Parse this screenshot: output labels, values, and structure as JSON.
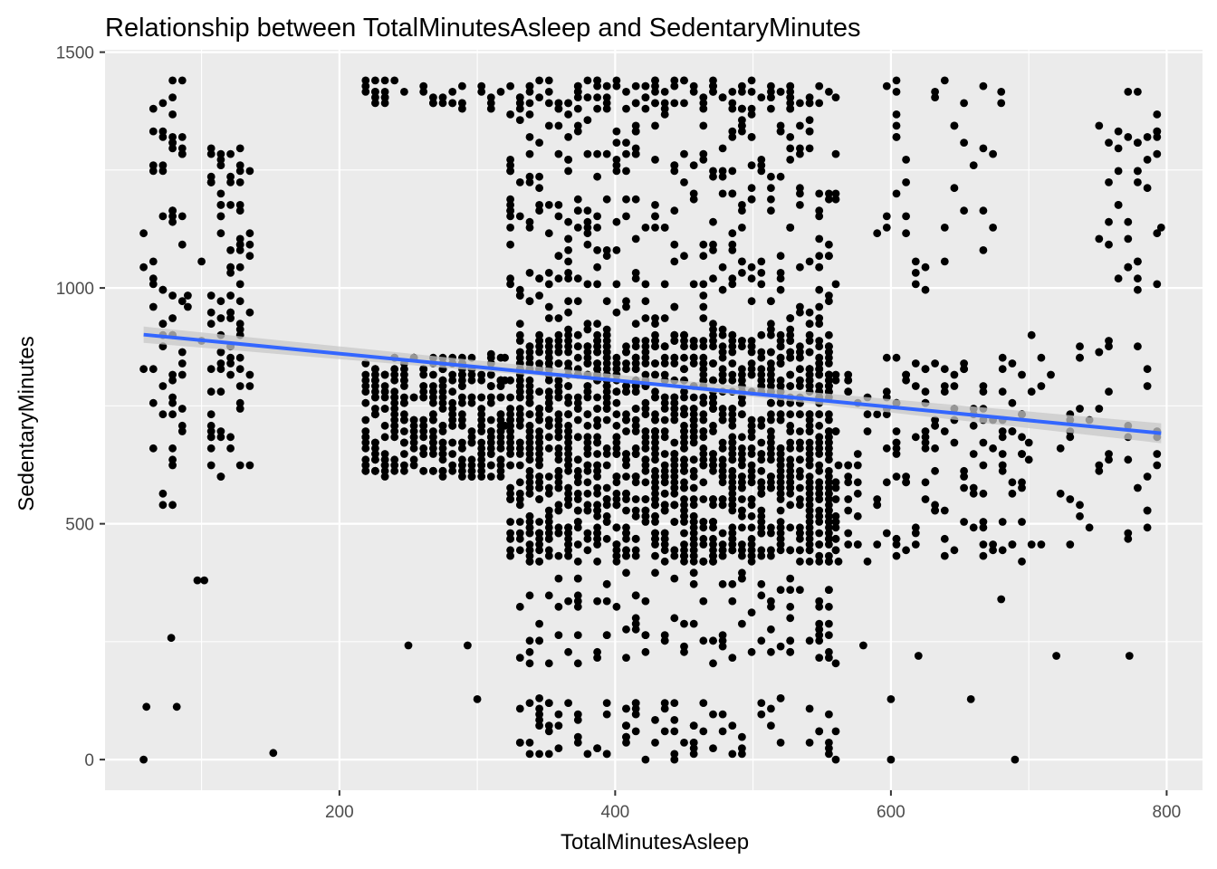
{
  "chart_data": {
    "type": "scatter",
    "title": "Relationship between TotalMinutesAsleep and SedentaryMinutes",
    "xlabel": "TotalMinutesAsleep",
    "ylabel": "SedentaryMinutes",
    "xlim": [
      30,
      826
    ],
    "ylim": [
      -65,
      1505
    ],
    "x_ticks": [
      200,
      400,
      600,
      800
    ],
    "x_tick_labels": [
      "200",
      "400",
      "600",
      "800"
    ],
    "y_ticks": [
      0,
      500,
      1000,
      1500
    ],
    "y_tick_labels": [
      "0",
      "500",
      "1000",
      "1500"
    ],
    "grid": true,
    "legend": "none",
    "colors": {
      "panel_background": "#ebebeb",
      "grid_line": "#ffffff",
      "point": "#000000",
      "trend_line": "#3366ff",
      "confidence_band": "#c8c8c8"
    },
    "trend_line": {
      "method": "lm",
      "se": true,
      "x": [
        58,
        796
      ],
      "y": [
        901,
        692
      ]
    },
    "point_clusters": [
      {
        "x": [
          58,
          90
        ],
        "y": [
          540,
          1440
        ],
        "n": 70
      },
      {
        "x": [
          100,
          135
        ],
        "y": [
          600,
          1300
        ],
        "n": 90
      },
      {
        "x": [
          215,
          320
        ],
        "y": [
          600,
          860
        ],
        "n": 320
      },
      {
        "x": [
          320,
          560
        ],
        "y": [
          420,
          900
        ],
        "n": 1400
      },
      {
        "x": [
          320,
          560
        ],
        "y": [
          900,
          1440
        ],
        "n": 320
      },
      {
        "x": [
          560,
          700
        ],
        "y": [
          420,
          860
        ],
        "n": 160
      },
      {
        "x": [
          590,
          680
        ],
        "y": [
          1000,
          1440
        ],
        "n": 40
      },
      {
        "x": [
          700,
          796
        ],
        "y": [
          440,
          900
        ],
        "n": 50
      },
      {
        "x": [
          750,
          796
        ],
        "y": [
          1000,
          1440
        ],
        "n": 40
      },
      {
        "x": [
          215,
          560
        ],
        "y": [
          1380,
          1440
        ],
        "n": 120
      },
      {
        "x": [
          330,
          560
        ],
        "y": [
          200,
          400
        ],
        "n": 110
      },
      {
        "x": [
          330,
          560
        ],
        "y": [
          0,
          130
        ],
        "n": 90
      }
    ],
    "outliers": [
      {
        "x": 58,
        "y": 0
      },
      {
        "x": 60,
        "y": 112
      },
      {
        "x": 82,
        "y": 112
      },
      {
        "x": 78,
        "y": 258
      },
      {
        "x": 97,
        "y": 380
      },
      {
        "x": 102,
        "y": 380
      },
      {
        "x": 152,
        "y": 14
      },
      {
        "x": 250,
        "y": 242
      },
      {
        "x": 293,
        "y": 242
      },
      {
        "x": 300,
        "y": 128
      },
      {
        "x": 560,
        "y": 0
      },
      {
        "x": 600,
        "y": 0
      },
      {
        "x": 680,
        "y": 340
      },
      {
        "x": 690,
        "y": 0
      },
      {
        "x": 720,
        "y": 220
      },
      {
        "x": 773,
        "y": 220
      },
      {
        "x": 600,
        "y": 128
      },
      {
        "x": 658,
        "y": 128
      },
      {
        "x": 580,
        "y": 242
      },
      {
        "x": 620,
        "y": 220
      }
    ]
  }
}
